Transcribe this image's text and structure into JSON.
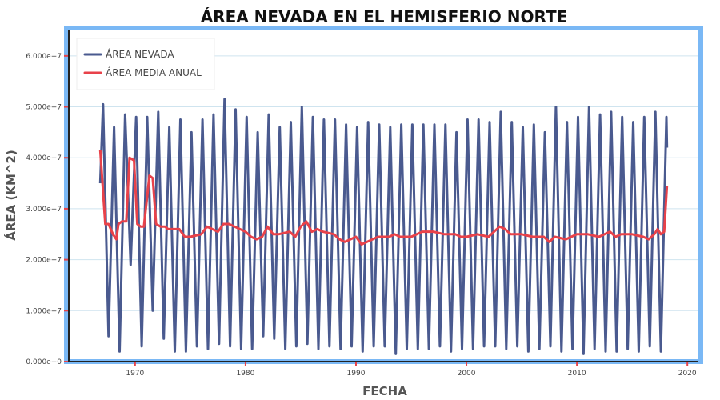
{
  "chart_data": {
    "type": "line",
    "title": "ÁREA NEVADA EN EL HEMISFERIO NORTE",
    "xlabel": "FECHA",
    "ylabel": "ÁREA (KM^2)",
    "xlim": [
      1964,
      2021
    ],
    "ylim": [
      0,
      65000000
    ],
    "x_ticks": [
      1970,
      1980,
      1990,
      2000,
      2010,
      2020
    ],
    "y_ticks": [
      0,
      10000000,
      20000000,
      30000000,
      40000000,
      50000000,
      60000000
    ],
    "y_tick_labels": [
      "0.000e+0",
      "1.000e+7",
      "2.000e+7",
      "3.000e+7",
      "4.000e+7",
      "5.000e+7",
      "6.000e+7"
    ],
    "grid": true,
    "legend_position": "top-left",
    "colors": {
      "snow": "#4a5a8f",
      "mean": "#e8424a",
      "frame": "#7ab8f5",
      "grid": "#cfe4ef"
    },
    "series": [
      {
        "name": "ÁREA NEVADA",
        "kind": "monthly_seasonal",
        "start_year": 1966.85,
        "end_year": 2018.15,
        "start_value": 35000000,
        "end_value": 42000000,
        "annual_winter_max": [
          [
            1967,
            50500000
          ],
          [
            1968,
            46000000
          ],
          [
            1969,
            48500000
          ],
          [
            1970,
            48000000
          ],
          [
            1971,
            48000000
          ],
          [
            1972,
            49000000
          ],
          [
            1973,
            46000000
          ],
          [
            1974,
            47500000
          ],
          [
            1975,
            45000000
          ],
          [
            1976,
            47500000
          ],
          [
            1977,
            48500000
          ],
          [
            1978,
            51500000
          ],
          [
            1979,
            49500000
          ],
          [
            1980,
            48000000
          ],
          [
            1981,
            45000000
          ],
          [
            1982,
            48500000
          ],
          [
            1983,
            46000000
          ],
          [
            1984,
            47000000
          ],
          [
            1985,
            50000000
          ],
          [
            1986,
            48000000
          ],
          [
            1987,
            47500000
          ],
          [
            1988,
            47500000
          ],
          [
            1989,
            46500000
          ],
          [
            1990,
            46000000
          ],
          [
            1991,
            47000000
          ],
          [
            1992,
            46500000
          ],
          [
            1993,
            46000000
          ],
          [
            1994,
            46500000
          ],
          [
            1995,
            46500000
          ],
          [
            1996,
            46500000
          ],
          [
            1997,
            46500000
          ],
          [
            1998,
            46500000
          ],
          [
            1999,
            45000000
          ],
          [
            2000,
            47500000
          ],
          [
            2001,
            47500000
          ],
          [
            2002,
            47000000
          ],
          [
            2003,
            49000000
          ],
          [
            2004,
            47000000
          ],
          [
            2005,
            46000000
          ],
          [
            2006,
            46500000
          ],
          [
            2007,
            45000000
          ],
          [
            2008,
            50000000
          ],
          [
            2009,
            47000000
          ],
          [
            2010,
            48000000
          ],
          [
            2011,
            50000000
          ],
          [
            2012,
            48500000
          ],
          [
            2013,
            49000000
          ],
          [
            2014,
            48000000
          ],
          [
            2015,
            47000000
          ],
          [
            2016,
            48000000
          ],
          [
            2017,
            49000000
          ],
          [
            2018,
            48000000
          ]
        ],
        "annual_summer_min": [
          [
            1967,
            5000000
          ],
          [
            1968,
            2000000
          ],
          [
            1969,
            19000000
          ],
          [
            1970,
            3000000
          ],
          [
            1971,
            10000000
          ],
          [
            1972,
            4500000
          ],
          [
            1973,
            2000000
          ],
          [
            1974,
            2000000
          ],
          [
            1975,
            3000000
          ],
          [
            1976,
            2500000
          ],
          [
            1977,
            3500000
          ],
          [
            1978,
            3000000
          ],
          [
            1979,
            2500000
          ],
          [
            1980,
            2500000
          ],
          [
            1981,
            5000000
          ],
          [
            1982,
            4500000
          ],
          [
            1983,
            2500000
          ],
          [
            1984,
            3000000
          ],
          [
            1985,
            3500000
          ],
          [
            1986,
            2500000
          ],
          [
            1987,
            3000000
          ],
          [
            1988,
            2500000
          ],
          [
            1989,
            3000000
          ],
          [
            1990,
            2000000
          ],
          [
            1991,
            3000000
          ],
          [
            1992,
            3000000
          ],
          [
            1993,
            1500000
          ],
          [
            1994,
            2500000
          ],
          [
            1995,
            2500000
          ],
          [
            1996,
            2500000
          ],
          [
            1997,
            3000000
          ],
          [
            1998,
            2000000
          ],
          [
            1999,
            2500000
          ],
          [
            2000,
            2500000
          ],
          [
            2001,
            3000000
          ],
          [
            2002,
            3000000
          ],
          [
            2003,
            2500000
          ],
          [
            2004,
            3000000
          ],
          [
            2005,
            2000000
          ],
          [
            2006,
            2500000
          ],
          [
            2007,
            3000000
          ],
          [
            2008,
            2000000
          ],
          [
            2009,
            2500000
          ],
          [
            2010,
            1500000
          ],
          [
            2011,
            2500000
          ],
          [
            2012,
            2000000
          ],
          [
            2013,
            2000000
          ],
          [
            2014,
            2500000
          ],
          [
            2015,
            2000000
          ],
          [
            2016,
            3000000
          ],
          [
            2017,
            2000000
          ]
        ]
      },
      {
        "name": "ÁREA MEDIA ANUAL",
        "kind": "line",
        "points": [
          [
            1966.85,
            41500000
          ],
          [
            1967.3,
            27000000
          ],
          [
            1967.6,
            27000000
          ],
          [
            1968.0,
            25000000
          ],
          [
            1968.3,
            24000000
          ],
          [
            1968.5,
            27000000
          ],
          [
            1968.8,
            27500000
          ],
          [
            1969.2,
            27500000
          ],
          [
            1969.5,
            40000000
          ],
          [
            1969.9,
            39500000
          ],
          [
            1970.2,
            27000000
          ],
          [
            1970.5,
            26500000
          ],
          [
            1970.8,
            26500000
          ],
          [
            1971.3,
            36500000
          ],
          [
            1971.6,
            36000000
          ],
          [
            1971.9,
            27000000
          ],
          [
            1972.3,
            26500000
          ],
          [
            1972.7,
            26500000
          ],
          [
            1973.0,
            26000000
          ],
          [
            1974.0,
            26000000
          ],
          [
            1974.5,
            24500000
          ],
          [
            1975.0,
            24500000
          ],
          [
            1976.0,
            25000000
          ],
          [
            1976.5,
            26500000
          ],
          [
            1977.0,
            26000000
          ],
          [
            1977.5,
            25500000
          ],
          [
            1978.0,
            27000000
          ],
          [
            1978.5,
            27000000
          ],
          [
            1979.0,
            26500000
          ],
          [
            1980.0,
            25500000
          ],
          [
            1980.5,
            24500000
          ],
          [
            1981.0,
            24000000
          ],
          [
            1981.5,
            24500000
          ],
          [
            1982.0,
            26500000
          ],
          [
            1982.5,
            25000000
          ],
          [
            1983.0,
            25000000
          ],
          [
            1984.0,
            25500000
          ],
          [
            1984.5,
            24500000
          ],
          [
            1985.0,
            26500000
          ],
          [
            1985.5,
            27500000
          ],
          [
            1986.0,
            25500000
          ],
          [
            1986.5,
            26000000
          ],
          [
            1987.0,
            25500000
          ],
          [
            1988.0,
            25000000
          ],
          [
            1988.5,
            24000000
          ],
          [
            1989.0,
            23500000
          ],
          [
            1990.0,
            24500000
          ],
          [
            1990.5,
            23000000
          ],
          [
            1991.0,
            23500000
          ],
          [
            1992.0,
            24500000
          ],
          [
            1993.0,
            24500000
          ],
          [
            1993.5,
            25000000
          ],
          [
            1994.0,
            24500000
          ],
          [
            1995.0,
            24500000
          ],
          [
            1996.0,
            25500000
          ],
          [
            1997.0,
            25500000
          ],
          [
            1998.0,
            25000000
          ],
          [
            1999.0,
            25000000
          ],
          [
            1999.5,
            24500000
          ],
          [
            2000.0,
            24500000
          ],
          [
            2001.0,
            25000000
          ],
          [
            2002.0,
            24500000
          ],
          [
            2003.0,
            26500000
          ],
          [
            2003.5,
            26000000
          ],
          [
            2004.0,
            25000000
          ],
          [
            2005.0,
            25000000
          ],
          [
            2006.0,
            24500000
          ],
          [
            2007.0,
            24500000
          ],
          [
            2007.5,
            23500000
          ],
          [
            2008.0,
            24500000
          ],
          [
            2009.0,
            24000000
          ],
          [
            2010.0,
            25000000
          ],
          [
            2011.0,
            25000000
          ],
          [
            2012.0,
            24500000
          ],
          [
            2013.0,
            25500000
          ],
          [
            2013.5,
            24500000
          ],
          [
            2014.0,
            25000000
          ],
          [
            2015.0,
            25000000
          ],
          [
            2016.0,
            24500000
          ],
          [
            2016.5,
            24000000
          ],
          [
            2017.0,
            25000000
          ],
          [
            2017.3,
            26000000
          ],
          [
            2017.6,
            25000000
          ],
          [
            2017.9,
            25500000
          ],
          [
            2018.15,
            34500000
          ]
        ]
      }
    ]
  }
}
